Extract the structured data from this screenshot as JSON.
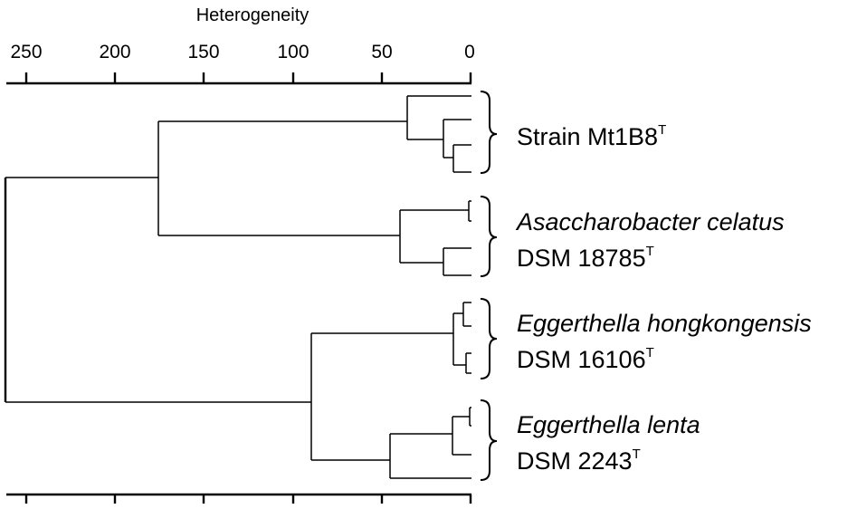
{
  "axis": {
    "title": "Heterogeneity",
    "ticks": [
      "250",
      "200",
      "150",
      "100",
      "50",
      "0"
    ]
  },
  "groups": [
    {
      "line1": "Strain Mt1B8",
      "line2": "",
      "superscript": "T"
    },
    {
      "line1": "Asaccharobacter celatus",
      "line2": "DSM 18785",
      "superscript": "T"
    },
    {
      "line1": "Eggerthella hongkongensis",
      "line2": "DSM 16106",
      "superscript": "T"
    },
    {
      "line1": "Eggerthella lenta",
      "line2": "DSM 2243",
      "superscript": "T"
    }
  ]
}
